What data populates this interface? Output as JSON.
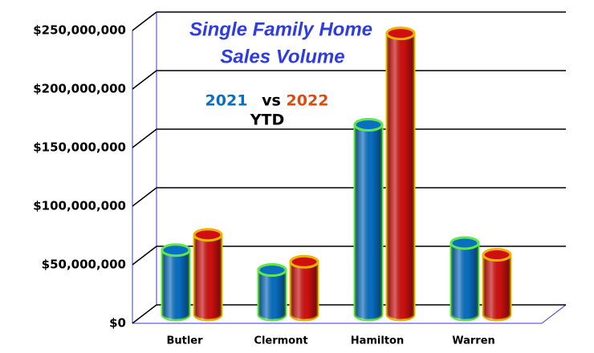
{
  "chart_data": {
    "type": "bar",
    "title_lines": [
      "Single Family Home",
      "Sales Volume"
    ],
    "legend_joiner": "vs",
    "subtitle": "YTD",
    "categories": [
      "Butler",
      "Clermont",
      "Hamilton",
      "Warren"
    ],
    "series": [
      {
        "name": "2021",
        "color": "#0a6fc2",
        "values": [
          55000000,
          38000000,
          162000000,
          61000000
        ]
      },
      {
        "name": "2022",
        "color": "#d01010",
        "values": [
          68000000,
          45000000,
          240000000,
          51000000
        ]
      }
    ],
    "ylim": [
      0,
      250000000
    ],
    "yticks": [
      {
        "value": 0,
        "label": "$0"
      },
      {
        "value": 50000000,
        "label": "$50,000,000"
      },
      {
        "value": 100000000,
        "label": "$100,000,000"
      },
      {
        "value": 150000000,
        "label": "$150,000,000"
      },
      {
        "value": 200000000,
        "label": "$200,000,000"
      },
      {
        "value": 250000000,
        "label": "$250,000,000"
      }
    ],
    "grid": true
  }
}
